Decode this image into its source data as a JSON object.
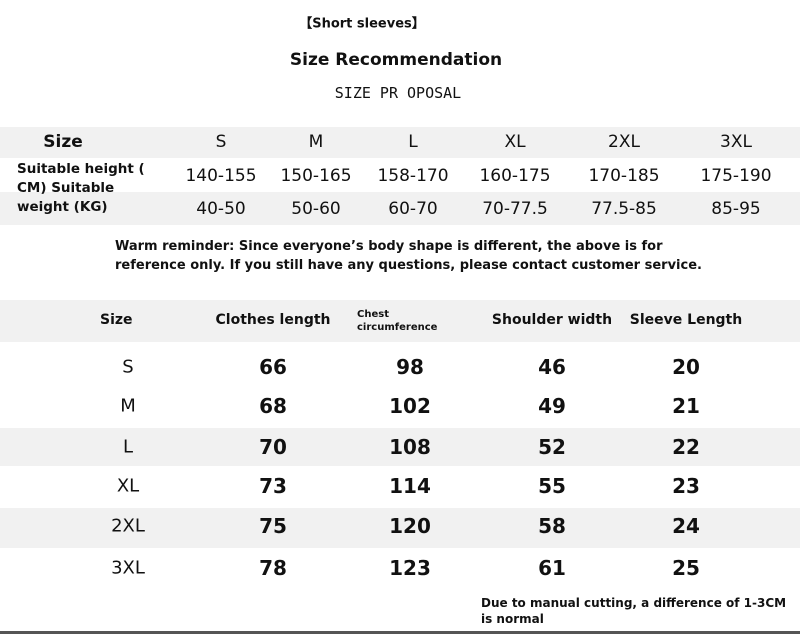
{
  "header": {
    "label": "【Short sleeves】",
    "title": "Size Recommendation",
    "subtitle": "SIZE PR OPOSAL"
  },
  "table1": {
    "header": [
      "Size",
      "S",
      "M",
      "L",
      "XL",
      "2XL",
      "3XL"
    ],
    "row_label": "Suitable height ( CM) Suitable weight (KG)",
    "rows": [
      [
        "140-155",
        "150-165",
        "158-170",
        "160-175",
        "170-185",
        "175-190"
      ],
      [
        "40-50",
        "50-60",
        "60-70",
        "70-77.5",
        "77.5-85",
        "85-95"
      ]
    ]
  },
  "note": "Warm reminder: Since everyone’s body shape is different, the above is for reference only. If you still have any questions, please contact customer service.",
  "table2": {
    "header": [
      "Size",
      "Clothes length",
      "Chest circumference",
      "Shoulder width",
      "Sleeve Length"
    ],
    "rows": [
      [
        "S",
        66,
        98,
        46,
        20
      ],
      [
        "M",
        68,
        102,
        49,
        21
      ],
      [
        "L",
        70,
        108,
        52,
        22
      ],
      [
        "XL",
        73,
        114,
        55,
        23
      ],
      [
        "2XL",
        75,
        120,
        58,
        24
      ],
      [
        "3XL",
        78,
        123,
        61,
        25
      ]
    ]
  },
  "footer": "Due to manual cutting, a difference of 1-3CM is normal"
}
